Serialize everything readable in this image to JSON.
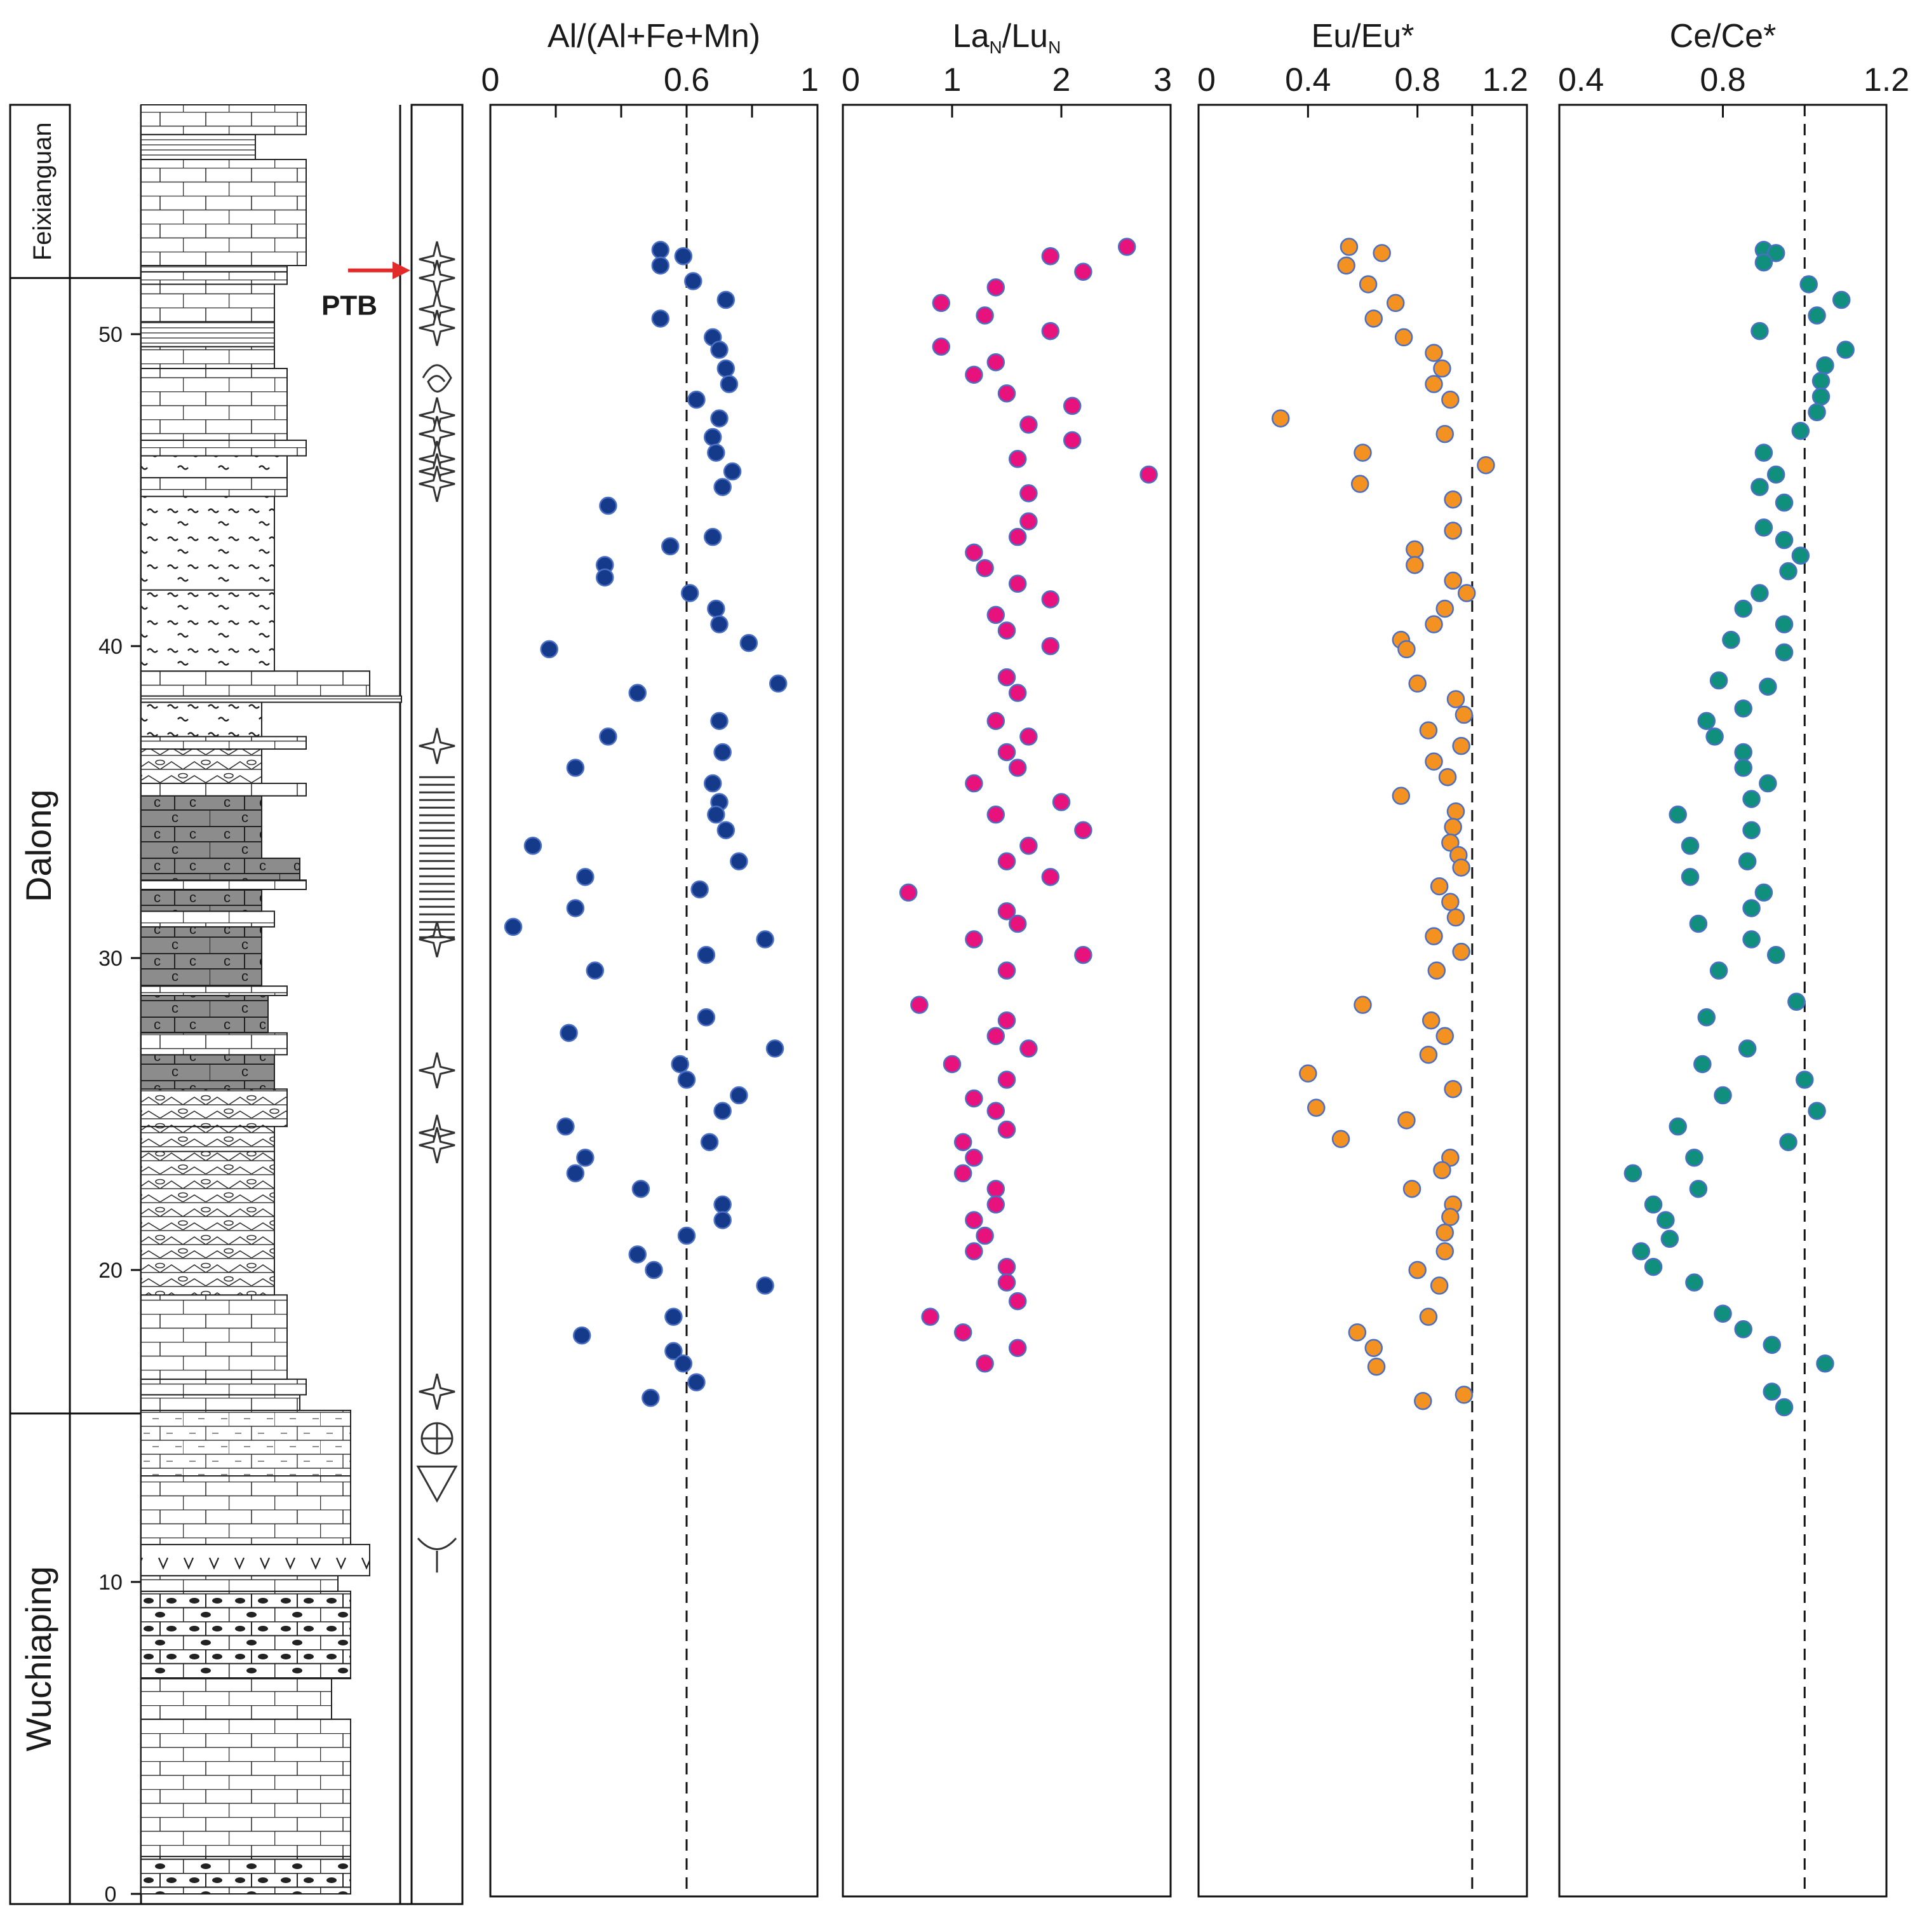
{
  "chart_data": {
    "type": "scatter",
    "depth_axis": {
      "label": "",
      "range": [
        0,
        57
      ],
      "ticks": [
        0,
        10,
        20,
        30,
        40,
        50
      ]
    },
    "units": [
      {
        "name": "Feixianguan",
        "from": 51.8,
        "to": 57.8
      },
      {
        "name": "Dalong",
        "from": 15.4,
        "to": 51.8
      },
      {
        "name": "Wuchiaping",
        "from": -0.7,
        "to": 15.4
      }
    ],
    "boundary": {
      "label": "PTB",
      "depth": 51.8
    },
    "panels": [
      {
        "title": "Al/(Al+Fe+Mn)",
        "tick_labels": [
          "0",
          "0.6",
          "1"
        ],
        "tick_values": [
          0,
          0.6,
          1
        ],
        "xlim": [
          0,
          1
        ],
        "minor_ticks": [
          0.2,
          0.4,
          0.8
        ],
        "reference": 0.6,
        "color": "#163a8a",
        "points": [
          [
            0.52,
            52.7
          ],
          [
            0.52,
            52.2
          ],
          [
            0.59,
            52.5
          ],
          [
            0.62,
            51.7
          ],
          [
            0.72,
            51.1
          ],
          [
            0.52,
            50.5
          ],
          [
            0.68,
            49.9
          ],
          [
            0.7,
            49.5
          ],
          [
            0.72,
            48.9
          ],
          [
            0.73,
            48.4
          ],
          [
            0.63,
            47.9
          ],
          [
            0.7,
            47.3
          ],
          [
            0.68,
            46.7
          ],
          [
            0.69,
            46.2
          ],
          [
            0.74,
            45.6
          ],
          [
            0.71,
            45.1
          ],
          [
            0.36,
            44.5
          ],
          [
            0.68,
            43.5
          ],
          [
            0.55,
            43.2
          ],
          [
            0.35,
            42.6
          ],
          [
            0.35,
            42.2
          ],
          [
            0.61,
            41.7
          ],
          [
            0.69,
            41.2
          ],
          [
            0.7,
            40.7
          ],
          [
            0.79,
            40.1
          ],
          [
            0.18,
            39.9
          ],
          [
            0.88,
            38.8
          ],
          [
            0.45,
            38.5
          ],
          [
            0.7,
            37.6
          ],
          [
            0.36,
            37.1
          ],
          [
            0.71,
            36.6
          ],
          [
            0.26,
            36.1
          ],
          [
            0.68,
            35.6
          ],
          [
            0.7,
            35.0
          ],
          [
            0.69,
            34.6
          ],
          [
            0.72,
            34.1
          ],
          [
            0.13,
            33.6
          ],
          [
            0.76,
            33.1
          ],
          [
            0.29,
            32.6
          ],
          [
            0.64,
            32.2
          ],
          [
            0.26,
            31.6
          ],
          [
            0.07,
            31.0
          ],
          [
            0.84,
            30.6
          ],
          [
            0.66,
            30.1
          ],
          [
            0.32,
            29.6
          ],
          [
            0.66,
            28.1
          ],
          [
            0.24,
            27.6
          ],
          [
            0.87,
            27.1
          ],
          [
            0.58,
            26.6
          ],
          [
            0.6,
            26.1
          ],
          [
            0.76,
            25.6
          ],
          [
            0.71,
            25.1
          ],
          [
            0.23,
            24.6
          ],
          [
            0.67,
            24.1
          ],
          [
            0.29,
            23.6
          ],
          [
            0.26,
            23.1
          ],
          [
            0.46,
            22.6
          ],
          [
            0.71,
            22.1
          ],
          [
            0.71,
            21.6
          ],
          [
            0.6,
            21.1
          ],
          [
            0.45,
            20.5
          ],
          [
            0.5,
            20.0
          ],
          [
            0.84,
            19.5
          ],
          [
            0.56,
            18.5
          ],
          [
            0.28,
            17.9
          ],
          [
            0.56,
            17.4
          ],
          [
            0.59,
            17.0
          ],
          [
            0.63,
            16.4
          ],
          [
            0.49,
            15.9
          ]
        ]
      },
      {
        "title": "LaN/LuN",
        "title_base_1": "La",
        "title_sub_1": "N",
        "title_sep": "/Lu",
        "title_sub_2": "N",
        "tick_labels": [
          "0",
          "1",
          "2",
          "3"
        ],
        "tick_values": [
          0,
          1,
          2,
          3
        ],
        "xlim": [
          0,
          3
        ],
        "reference": null,
        "color": "#e8127c",
        "points": [
          [
            2.6,
            52.8
          ],
          [
            1.9,
            52.5
          ],
          [
            2.2,
            52.0
          ],
          [
            1.4,
            51.5
          ],
          [
            0.9,
            51.0
          ],
          [
            1.3,
            50.6
          ],
          [
            1.9,
            50.1
          ],
          [
            0.9,
            49.6
          ],
          [
            1.4,
            49.1
          ],
          [
            1.2,
            48.7
          ],
          [
            1.5,
            48.1
          ],
          [
            2.1,
            47.7
          ],
          [
            1.7,
            47.1
          ],
          [
            2.1,
            46.6
          ],
          [
            1.6,
            46.0
          ],
          [
            2.8,
            45.5
          ],
          [
            1.7,
            44.9
          ],
          [
            1.7,
            44.0
          ],
          [
            1.6,
            43.5
          ],
          [
            1.2,
            43.0
          ],
          [
            1.3,
            42.5
          ],
          [
            1.6,
            42.0
          ],
          [
            1.9,
            41.5
          ],
          [
            1.4,
            41.0
          ],
          [
            1.5,
            40.5
          ],
          [
            1.9,
            40.0
          ],
          [
            1.5,
            39.0
          ],
          [
            1.6,
            38.5
          ],
          [
            1.4,
            37.6
          ],
          [
            1.7,
            37.1
          ],
          [
            1.5,
            36.6
          ],
          [
            1.6,
            36.1
          ],
          [
            1.2,
            35.6
          ],
          [
            2.0,
            35.0
          ],
          [
            1.4,
            34.6
          ],
          [
            2.2,
            34.1
          ],
          [
            1.7,
            33.6
          ],
          [
            1.5,
            33.1
          ],
          [
            1.9,
            32.6
          ],
          [
            0.6,
            32.1
          ],
          [
            1.5,
            31.5
          ],
          [
            1.6,
            31.1
          ],
          [
            1.2,
            30.6
          ],
          [
            2.2,
            30.1
          ],
          [
            1.5,
            29.6
          ],
          [
            0.7,
            28.5
          ],
          [
            1.5,
            28.0
          ],
          [
            1.4,
            27.5
          ],
          [
            1.7,
            27.1
          ],
          [
            1.0,
            26.6
          ],
          [
            1.5,
            26.1
          ],
          [
            1.2,
            25.5
          ],
          [
            1.4,
            25.1
          ],
          [
            1.5,
            24.5
          ],
          [
            1.1,
            24.1
          ],
          [
            1.2,
            23.6
          ],
          [
            1.1,
            23.1
          ],
          [
            1.4,
            22.6
          ],
          [
            1.4,
            22.1
          ],
          [
            1.2,
            21.6
          ],
          [
            1.3,
            21.1
          ],
          [
            1.2,
            20.6
          ],
          [
            1.5,
            20.1
          ],
          [
            1.5,
            19.6
          ],
          [
            1.6,
            19.0
          ],
          [
            0.8,
            18.5
          ],
          [
            1.1,
            18.0
          ],
          [
            1.6,
            17.5
          ],
          [
            1.3,
            17.0
          ]
        ]
      },
      {
        "title": "Eu/Eu*",
        "tick_labels": [
          "0",
          "0.4",
          "0.8",
          "1.2"
        ],
        "tick_values": [
          0,
          0.4,
          0.8,
          1.2
        ],
        "xlim": [
          0,
          1.2
        ],
        "reference": 1.0,
        "color": "#f39121",
        "points": [
          [
            0.55,
            52.8
          ],
          [
            0.67,
            52.6
          ],
          [
            0.54,
            52.2
          ],
          [
            0.62,
            51.6
          ],
          [
            0.72,
            51.0
          ],
          [
            0.64,
            50.5
          ],
          [
            0.75,
            49.9
          ],
          [
            0.86,
            49.4
          ],
          [
            0.89,
            48.9
          ],
          [
            0.86,
            48.4
          ],
          [
            0.92,
            47.9
          ],
          [
            0.3,
            47.3
          ],
          [
            0.9,
            46.8
          ],
          [
            0.6,
            46.2
          ],
          [
            1.05,
            45.8
          ],
          [
            0.59,
            45.2
          ],
          [
            0.93,
            44.7
          ],
          [
            0.93,
            43.7
          ],
          [
            0.79,
            43.1
          ],
          [
            0.79,
            42.6
          ],
          [
            0.93,
            42.1
          ],
          [
            0.98,
            41.7
          ],
          [
            0.9,
            41.2
          ],
          [
            0.86,
            40.7
          ],
          [
            0.74,
            40.2
          ],
          [
            0.76,
            39.9
          ],
          [
            0.8,
            38.8
          ],
          [
            0.94,
            38.3
          ],
          [
            0.97,
            37.8
          ],
          [
            0.84,
            37.3
          ],
          [
            0.96,
            36.8
          ],
          [
            0.86,
            36.3
          ],
          [
            0.91,
            35.8
          ],
          [
            0.74,
            35.2
          ],
          [
            0.94,
            34.7
          ],
          [
            0.93,
            34.2
          ],
          [
            0.92,
            33.7
          ],
          [
            0.95,
            33.3
          ],
          [
            0.96,
            32.9
          ],
          [
            0.88,
            32.3
          ],
          [
            0.92,
            31.8
          ],
          [
            0.94,
            31.3
          ],
          [
            0.86,
            30.7
          ],
          [
            0.96,
            30.2
          ],
          [
            0.87,
            29.6
          ],
          [
            0.6,
            28.5
          ],
          [
            0.85,
            28.0
          ],
          [
            0.9,
            27.5
          ],
          [
            0.84,
            26.9
          ],
          [
            0.4,
            26.3
          ],
          [
            0.93,
            25.8
          ],
          [
            0.43,
            25.2
          ],
          [
            0.76,
            24.8
          ],
          [
            0.52,
            24.2
          ],
          [
            0.92,
            23.6
          ],
          [
            0.89,
            23.2
          ],
          [
            0.78,
            22.6
          ],
          [
            0.93,
            22.1
          ],
          [
            0.92,
            21.7
          ],
          [
            0.9,
            21.2
          ],
          [
            0.9,
            20.6
          ],
          [
            0.8,
            20.0
          ],
          [
            0.88,
            19.5
          ],
          [
            0.84,
            18.5
          ],
          [
            0.58,
            18.0
          ],
          [
            0.64,
            17.5
          ],
          [
            0.65,
            16.9
          ],
          [
            0.97,
            16.0
          ],
          [
            0.82,
            15.8
          ]
        ]
      },
      {
        "title": "Ce/Ce*",
        "tick_labels": [
          "0.4",
          "0.8",
          "1.2"
        ],
        "tick_values": [
          0.4,
          0.8,
          1.2
        ],
        "xlim": [
          0.4,
          1.2
        ],
        "reference": 1.0,
        "color": "#0f8f7c",
        "points": [
          [
            0.9,
            52.7
          ],
          [
            0.93,
            52.6
          ],
          [
            0.9,
            52.3
          ],
          [
            1.01,
            51.6
          ],
          [
            1.09,
            51.1
          ],
          [
            1.03,
            50.6
          ],
          [
            0.89,
            50.1
          ],
          [
            1.1,
            49.5
          ],
          [
            1.05,
            49.0
          ],
          [
            1.04,
            48.5
          ],
          [
            1.04,
            48.0
          ],
          [
            1.03,
            47.5
          ],
          [
            0.99,
            46.9
          ],
          [
            0.9,
            46.2
          ],
          [
            0.93,
            45.5
          ],
          [
            0.89,
            45.1
          ],
          [
            0.95,
            44.6
          ],
          [
            0.9,
            43.8
          ],
          [
            0.95,
            43.4
          ],
          [
            0.99,
            42.9
          ],
          [
            0.96,
            42.4
          ],
          [
            0.89,
            41.7
          ],
          [
            0.85,
            41.2
          ],
          [
            0.95,
            40.7
          ],
          [
            0.82,
            40.2
          ],
          [
            0.95,
            39.8
          ],
          [
            0.79,
            38.9
          ],
          [
            0.91,
            38.7
          ],
          [
            0.85,
            38.0
          ],
          [
            0.76,
            37.6
          ],
          [
            0.78,
            37.1
          ],
          [
            0.85,
            36.6
          ],
          [
            0.85,
            36.1
          ],
          [
            0.91,
            35.6
          ],
          [
            0.87,
            35.1
          ],
          [
            0.69,
            34.6
          ],
          [
            0.87,
            34.1
          ],
          [
            0.72,
            33.6
          ],
          [
            0.86,
            33.1
          ],
          [
            0.72,
            32.6
          ],
          [
            0.9,
            32.1
          ],
          [
            0.87,
            31.6
          ],
          [
            0.74,
            31.1
          ],
          [
            0.87,
            30.6
          ],
          [
            0.93,
            30.1
          ],
          [
            0.79,
            29.6
          ],
          [
            0.98,
            28.6
          ],
          [
            0.76,
            28.1
          ],
          [
            0.86,
            27.1
          ],
          [
            0.75,
            26.6
          ],
          [
            1.0,
            26.1
          ],
          [
            0.8,
            25.6
          ],
          [
            1.03,
            25.1
          ],
          [
            0.69,
            24.6
          ],
          [
            0.96,
            24.1
          ],
          [
            0.73,
            23.6
          ],
          [
            0.58,
            23.1
          ],
          [
            0.74,
            22.6
          ],
          [
            0.63,
            22.1
          ],
          [
            0.66,
            21.6
          ],
          [
            0.67,
            21.0
          ],
          [
            0.6,
            20.6
          ],
          [
            0.63,
            20.1
          ],
          [
            0.73,
            19.6
          ],
          [
            0.8,
            18.6
          ],
          [
            0.85,
            18.1
          ],
          [
            0.92,
            17.6
          ],
          [
            1.05,
            17.0
          ],
          [
            0.92,
            16.1
          ],
          [
            0.95,
            15.6
          ]
        ]
      }
    ]
  }
}
